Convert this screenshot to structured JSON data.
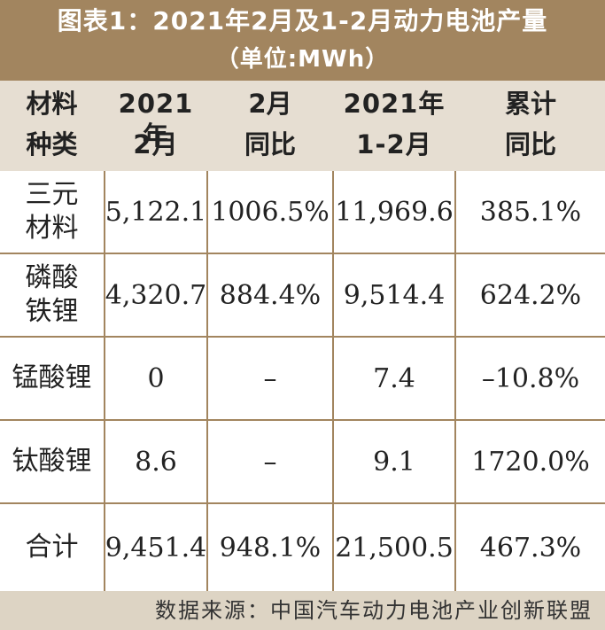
{
  "title": {
    "line1": "图表1：2021年2月及1-2月动力电池产量",
    "line2": "（单位:MWh）"
  },
  "headers": [
    {
      "line1": "材料",
      "line2": "种类"
    },
    {
      "line1": "2021年",
      "line2": "2月"
    },
    {
      "line1": "2月",
      "line2": "同比"
    },
    {
      "line1": "2021年",
      "line2": "1-2月"
    },
    {
      "line1": "累计",
      "line2": "同比"
    }
  ],
  "rows": [
    {
      "name1": "三元",
      "name2": "材料",
      "feb": "5,122.1",
      "feb_yoy": "1006.5%",
      "jan_feb": "11,969.6",
      "cum_yoy": "385.1%"
    },
    {
      "name1": "磷酸",
      "name2": "铁锂",
      "feb": "4,320.7",
      "feb_yoy": "884.4%",
      "jan_feb": "9,514.4",
      "cum_yoy": "624.2%"
    },
    {
      "name1": "锰酸锂",
      "name2": "",
      "feb": "0",
      "feb_yoy": "–",
      "jan_feb": "7.4",
      "cum_yoy": "–10.8%"
    },
    {
      "name1": "钛酸锂",
      "name2": "",
      "feb": "8.6",
      "feb_yoy": "–",
      "jan_feb": "9.1",
      "cum_yoy": "1720.0%"
    },
    {
      "name1": "合计",
      "name2": "",
      "feb": "9,451.4",
      "feb_yoy": "948.1%",
      "jan_feb": "21,500.5",
      "cum_yoy": "467.3%"
    }
  ],
  "source": "数据来源：中国汽车动力电池产业创新联盟",
  "colors": {
    "title_bg": "#a2855f",
    "header_bg": "#e6ded2",
    "grid": "#a2855f",
    "source_bg": "#ddd4c4"
  }
}
